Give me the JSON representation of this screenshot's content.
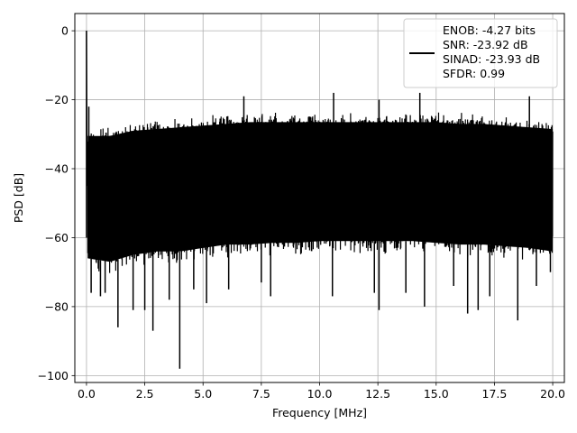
{
  "chart_data": {
    "type": "line",
    "title": "",
    "xlabel": "Frequency [MHz]",
    "ylabel": "PSD [dB]",
    "xlim": [
      -0.5,
      20.5
    ],
    "ylim": [
      -102,
      5
    ],
    "xticks": [
      0.0,
      2.5,
      5.0,
      7.5,
      10.0,
      12.5,
      15.0,
      17.5,
      20.0
    ],
    "xtick_labels": [
      "0.0",
      "2.5",
      "5.0",
      "7.5",
      "10.0",
      "12.5",
      "15.0",
      "17.5",
      "20.0"
    ],
    "yticks": [
      0,
      -20,
      -40,
      -60,
      -80,
      -100
    ],
    "ytick_labels": [
      "0",
      "−20",
      "−40",
      "−60",
      "−80",
      "−100"
    ],
    "grid": true,
    "legend_position": "top-right",
    "series": [
      {
        "name": "ENOB: -4.27 bits\nSNR: -23.92 dB\nSINAD: -23.93 dB\nSFDR: 0.99",
        "legend_lines": [
          "ENOB: -4.27 bits",
          "SNR: -23.92 dB",
          "SINAD: -23.93 dB",
          "SFDR: 0.99"
        ],
        "color": "#000000",
        "x_range": [
          0.0,
          20.0
        ],
        "peak": {
          "x": 0.0,
          "y": 0.0
        },
        "upper_envelope": {
          "x": [
            0.05,
            1,
            2,
            3,
            4,
            5,
            6,
            7,
            8,
            9,
            10,
            11,
            12,
            13,
            14,
            15,
            16,
            17,
            18,
            19,
            20
          ],
          "y": [
            -27,
            -27,
            -25.5,
            -25,
            -24.5,
            -24,
            -23.5,
            -23,
            -23,
            -23,
            -23,
            -23,
            -23,
            -23,
            -23,
            -23,
            -23.5,
            -23.5,
            -24,
            -24.5,
            -25
          ]
        },
        "lower_envelope": {
          "x": [
            0.05,
            1,
            2,
            3,
            4,
            5,
            6,
            7,
            8,
            9,
            10,
            11,
            12,
            13,
            14,
            15,
            16,
            17,
            18,
            19,
            20
          ],
          "y": [
            -70,
            -71,
            -69,
            -68,
            -68,
            -67,
            -66,
            -66,
            -65.5,
            -65.5,
            -65,
            -65,
            -65,
            -65,
            -65,
            -65.5,
            -66,
            -66,
            -66.5,
            -67,
            -68
          ]
        },
        "spikes_up": [
          {
            "x": 0.1,
            "y": -22
          },
          {
            "x": 6.75,
            "y": -19
          },
          {
            "x": 10.6,
            "y": -18
          },
          {
            "x": 12.55,
            "y": -20
          },
          {
            "x": 14.3,
            "y": -18
          },
          {
            "x": 19.0,
            "y": -19
          }
        ],
        "spikes_down": [
          {
            "x": 0.2,
            "y": -76
          },
          {
            "x": 0.6,
            "y": -77
          },
          {
            "x": 0.8,
            "y": -76
          },
          {
            "x": 1.35,
            "y": -86
          },
          {
            "x": 2.0,
            "y": -81
          },
          {
            "x": 2.5,
            "y": -81
          },
          {
            "x": 2.85,
            "y": -87
          },
          {
            "x": 3.55,
            "y": -78
          },
          {
            "x": 4.0,
            "y": -98
          },
          {
            "x": 4.6,
            "y": -75
          },
          {
            "x": 5.15,
            "y": -79
          },
          {
            "x": 6.1,
            "y": -75
          },
          {
            "x": 7.5,
            "y": -73
          },
          {
            "x": 7.9,
            "y": -77
          },
          {
            "x": 10.55,
            "y": -77
          },
          {
            "x": 12.35,
            "y": -76
          },
          {
            "x": 12.55,
            "y": -81
          },
          {
            "x": 13.7,
            "y": -76
          },
          {
            "x": 14.5,
            "y": -80
          },
          {
            "x": 15.75,
            "y": -74
          },
          {
            "x": 16.35,
            "y": -82
          },
          {
            "x": 16.8,
            "y": -81
          },
          {
            "x": 17.3,
            "y": -77
          },
          {
            "x": 18.5,
            "y": -84
          },
          {
            "x": 19.3,
            "y": -74
          },
          {
            "x": 19.9,
            "y": -70
          }
        ]
      }
    ]
  }
}
